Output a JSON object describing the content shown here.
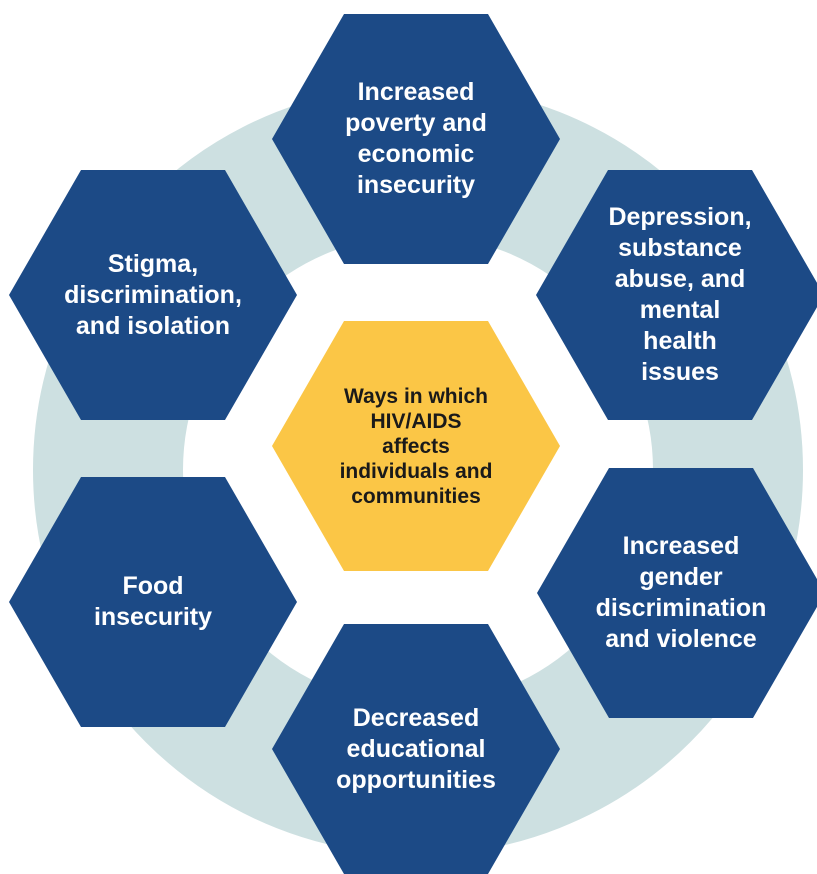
{
  "colors": {
    "outer_hex": "#1c4a86",
    "center_hex": "#fbc646",
    "ring": "#cde0e1",
    "outer_text": "#ffffff",
    "center_text": "#1a1a1a"
  },
  "center": {
    "label": "Ways in which\nHIV/AIDS\naffects\nindividuals and\ncommunities"
  },
  "nodes": [
    {
      "label": "Increased\npoverty and\neconomic\ninsecurity"
    },
    {
      "label": "Depression,\nsubstance\nabuse, and\nmental\nhealth\nissues"
    },
    {
      "label": "Increased\ngender\ndiscrimination\nand violence"
    },
    {
      "label": "Decreased\neducational\nopportunities"
    },
    {
      "label": "Food\ninsecurity"
    },
    {
      "label": "Stigma,\ndiscrimination,\nand isolation"
    }
  ]
}
